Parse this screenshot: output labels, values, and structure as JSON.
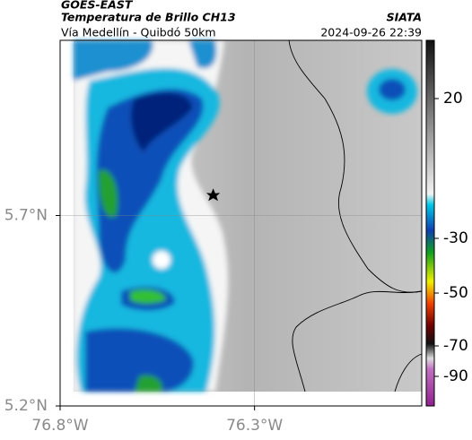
{
  "header": {
    "source": "GOES-EAST",
    "product": "Temperatura de Brillo CH13",
    "brand": "SIATA",
    "route": "Vía Medellín - Quibdó 50km",
    "timestamp": "2024-09-26 22:39"
  },
  "map": {
    "xlim": [
      -76.8,
      -75.87
    ],
    "ylim": [
      5.2,
      6.16
    ],
    "xticks": [
      {
        "value": -76.8,
        "label": "76.8°W"
      },
      {
        "value": -76.3,
        "label": "76.3°W"
      }
    ],
    "yticks": [
      {
        "value": 5.7,
        "label": "5.7°N"
      },
      {
        "value": 5.2,
        "label": "5.2°N"
      }
    ]
  },
  "colorbar": {
    "ticks": [
      20,
      -30,
      -50,
      -70,
      -90
    ]
  }
}
